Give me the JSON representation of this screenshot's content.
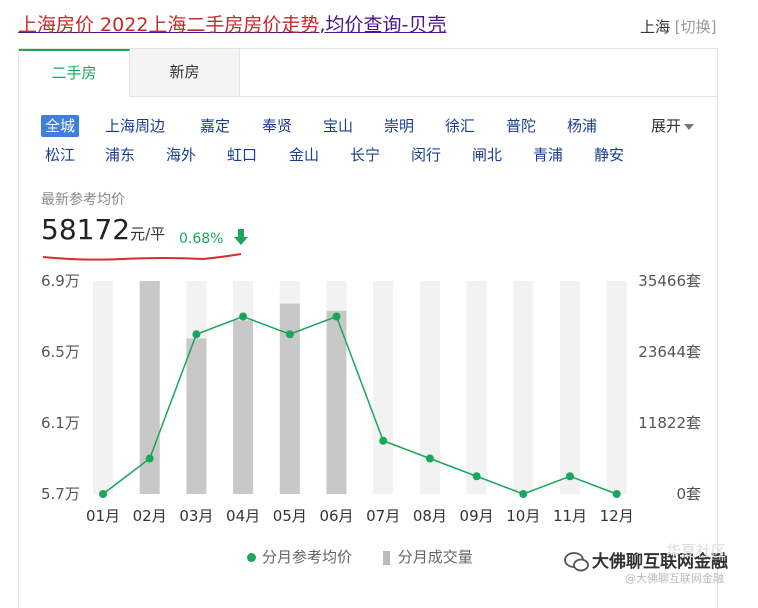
{
  "page": {
    "title_part1": "上海房价",
    "title_part2": " 2022上海二手房房价走势",
    "title_part3": ",均价查询-贝壳",
    "location": "上海",
    "location_switch": "[切换]"
  },
  "tabs": [
    {
      "label": "二手房",
      "active": true
    },
    {
      "label": "新房",
      "active": false
    }
  ],
  "districts_row1": [
    "全城",
    "上海周边",
    "嘉定",
    "奉贤",
    "宝山",
    "崇明",
    "徐汇",
    "普陀",
    "杨浦"
  ],
  "districts_row2": [
    "松江",
    "浦东",
    "海外",
    "虹口",
    "金山",
    "长宁",
    "闵行",
    "闸北",
    "青浦",
    "静安"
  ],
  "selected_district": "全城",
  "expand_label": "展开",
  "price": {
    "label": "最新参考均价",
    "value": "58172",
    "unit": "元/平",
    "change": "0.68%",
    "direction": "down"
  },
  "legend": {
    "price": "分月参考均价",
    "volume": "分月成交量"
  },
  "watermark": {
    "main": "大佛聊互联网金融",
    "sub": "@大佛聊互联网金融",
    "top": "华夏社区"
  },
  "colors": {
    "accent_green": "#19a85b",
    "link_blue": "#1a3e8f",
    "selected_bg": "#3e7fd8",
    "bar_grey": "#c8c8c8",
    "bg_stripe": "#f2f2f2"
  },
  "chart_data": {
    "type": "bar+line",
    "categories": [
      "01月",
      "02月",
      "03月",
      "04月",
      "05月",
      "06月",
      "07月",
      "08月",
      "09月",
      "10月",
      "11月",
      "12月"
    ],
    "y_left_ticks": [
      "6.9万",
      "6.5万",
      "6.1万",
      "5.7万"
    ],
    "y_left_range": [
      57000,
      69000
    ],
    "y_right_ticks": [
      "35466套",
      "23644套",
      "11822套",
      "0套"
    ],
    "y_right_range": [
      0,
      35466
    ],
    "series": [
      {
        "name": "分月参考均价",
        "type": "line",
        "values": [
          57000,
          59000,
          66000,
          67000,
          66000,
          67000,
          60000,
          59000,
          58000,
          57000,
          58000,
          57000
        ]
      },
      {
        "name": "分月成交量",
        "type": "bar",
        "values": [
          0,
          35466,
          25900,
          28900,
          31700,
          30500,
          0,
          0,
          0,
          0,
          0,
          0
        ]
      }
    ]
  }
}
